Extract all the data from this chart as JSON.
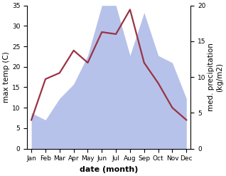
{
  "months": [
    "Jan",
    "Feb",
    "Mar",
    "Apr",
    "May",
    "Jun",
    "Jul",
    "Aug",
    "Sep",
    "Oct",
    "Nov",
    "Dec"
  ],
  "temperature": [
    7,
    17,
    18.5,
    24,
    21,
    28.5,
    28,
    34,
    21,
    16,
    10,
    7
  ],
  "precipitation": [
    5,
    4,
    7,
    9,
    13,
    20,
    20,
    13,
    19,
    13,
    12,
    7
  ],
  "temp_color": "#993344",
  "precip_color": "#b0bce8",
  "background_color": "#ffffff",
  "ylabel_left": "max temp (C)",
  "ylabel_right": "med. precipitation\n(kg/m2)",
  "xlabel": "date (month)",
  "ylim_left": [
    0,
    35
  ],
  "ylim_right": [
    0,
    20
  ],
  "yticks_left": [
    0,
    5,
    10,
    15,
    20,
    25,
    30,
    35
  ],
  "yticks_right": [
    0,
    5,
    10,
    15,
    20
  ],
  "label_fontsize": 7.5,
  "tick_fontsize": 6.5,
  "xlabel_fontsize": 8,
  "linewidth": 1.6
}
